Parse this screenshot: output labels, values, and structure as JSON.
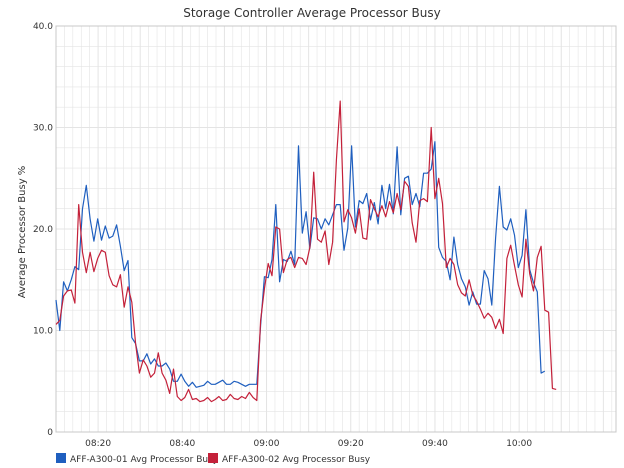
{
  "chart_data": {
    "type": "line",
    "title": "Storage Controller Average Processor Busy",
    "xlabel": "",
    "ylabel": "Average Processor Busy %",
    "x_start": "08:10",
    "x_step_minutes": 0.9,
    "x_ticks": [
      "08:20",
      "08:40",
      "09:00",
      "09:20",
      "09:40",
      "10:00"
    ],
    "xlim": [
      "08:10",
      "10:23"
    ],
    "y_ticks": [
      "0",
      "10.0",
      "20.0",
      "30.0",
      "40.0"
    ],
    "ylim": [
      0,
      40
    ],
    "grid": true,
    "legend_position": "bottom",
    "series": [
      {
        "name": "AFF-A300-01 Avg Processor Busy",
        "color": "#1f5fbf",
        "values": [
          13.0,
          10.0,
          14.8,
          13.9,
          15.0,
          16.3,
          16.0,
          22.0,
          24.3,
          21.0,
          18.8,
          21.0,
          18.9,
          20.3,
          19.1,
          19.3,
          20.4,
          18.3,
          15.9,
          16.9,
          9.3,
          8.7,
          7.0,
          7.0,
          7.7,
          6.7,
          7.2,
          6.5,
          6.5,
          6.8,
          6.2,
          5.0,
          5.0,
          5.7,
          5.0,
          4.5,
          4.9,
          4.4,
          4.5,
          4.6,
          5.0,
          4.7,
          4.7,
          4.9,
          5.1,
          4.7,
          4.7,
          5.0,
          4.9,
          4.7,
          4.5,
          4.7,
          4.7,
          4.7,
          10.5,
          15.3,
          15.2,
          17.0,
          22.4,
          14.8,
          17.0,
          16.8,
          17.8,
          16.5,
          28.2,
          19.6,
          21.7,
          18.1,
          21.1,
          21.0,
          20.0,
          21.0,
          20.4,
          21.4,
          22.4,
          22.4,
          17.9,
          20.1,
          28.2,
          20.2,
          22.8,
          22.5,
          23.5,
          20.9,
          22.6,
          20.5,
          24.3,
          22.0,
          24.4,
          21.5,
          28.1,
          21.4,
          25.0,
          25.2,
          22.4,
          23.5,
          22.2,
          25.5,
          25.5,
          25.9,
          28.6,
          18.2,
          17.2,
          16.8,
          15.0,
          19.2,
          16.5,
          15.1,
          14.3,
          12.5,
          13.8,
          12.6,
          12.6,
          15.9,
          15.1,
          12.5,
          19.1,
          24.2,
          20.2,
          19.9,
          21.0,
          19.4,
          16.2,
          17.4,
          21.9,
          16.0,
          14.7,
          13.8,
          5.8,
          6.0
        ]
      },
      {
        "name": "AFF-A300-02 Avg Processor Busy",
        "color": "#c4213a",
        "values": [
          10.6,
          11.0,
          13.4,
          13.9,
          14.0,
          12.7,
          22.4,
          17.7,
          15.7,
          17.7,
          15.8,
          17.1,
          17.9,
          17.7,
          15.4,
          14.5,
          14.3,
          15.5,
          12.3,
          14.3,
          12.8,
          8.7,
          5.8,
          7.1,
          6.5,
          5.4,
          5.8,
          7.8,
          5.8,
          5.1,
          3.8,
          6.2,
          3.5,
          3.1,
          3.4,
          4.2,
          3.2,
          3.3,
          3.0,
          3.1,
          3.4,
          3.0,
          3.2,
          3.5,
          3.1,
          3.2,
          3.7,
          3.3,
          3.2,
          3.5,
          3.3,
          3.9,
          3.4,
          3.1,
          11.0,
          14.1,
          16.6,
          15.4,
          20.2,
          20.0,
          15.7,
          17.0,
          17.2,
          16.2,
          17.2,
          17.1,
          16.5,
          18.2,
          25.6,
          19.0,
          18.7,
          19.8,
          16.5,
          18.7,
          26.8,
          32.6,
          20.7,
          21.9,
          21.1,
          19.6,
          22.0,
          19.1,
          19.0,
          22.9,
          22.0,
          21.2,
          22.3,
          21.2,
          22.7,
          21.6,
          23.5,
          21.9,
          24.7,
          24.2,
          20.6,
          18.7,
          22.8,
          23.0,
          22.7,
          30.0,
          23.0,
          25.0,
          22.5,
          16.2,
          17.1,
          16.5,
          14.5,
          13.7,
          13.4,
          15.0,
          13.5,
          12.9,
          12.1,
          11.2,
          11.7,
          11.3,
          10.2,
          11.1,
          9.7,
          17.1,
          18.4,
          16.4,
          14.5,
          13.3,
          19.0,
          15.6,
          13.9,
          17.2,
          18.3,
          12.0,
          11.8,
          4.3,
          4.2
        ]
      }
    ]
  }
}
